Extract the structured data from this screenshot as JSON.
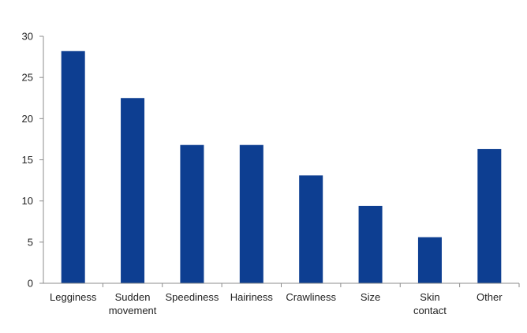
{
  "chart_data": {
    "type": "bar",
    "title": "",
    "xlabel": "",
    "ylabel": "",
    "categories": [
      [
        "Legginess"
      ],
      [
        "Sudden",
        "movement"
      ],
      [
        "Speediness"
      ],
      [
        "Hairiness"
      ],
      [
        "Crawliness"
      ],
      [
        "Size"
      ],
      [
        "Skin",
        "contact"
      ],
      [
        "Other"
      ]
    ],
    "values": [
      28.2,
      22.5,
      16.8,
      16.8,
      13.1,
      9.4,
      5.6,
      16.3
    ],
    "ylim": [
      0,
      30
    ],
    "yticks": [
      "0",
      "5",
      "10",
      "15",
      "20",
      "25",
      "30"
    ],
    "bar_color": "#0d3e91",
    "grid": false,
    "legend": "none"
  }
}
